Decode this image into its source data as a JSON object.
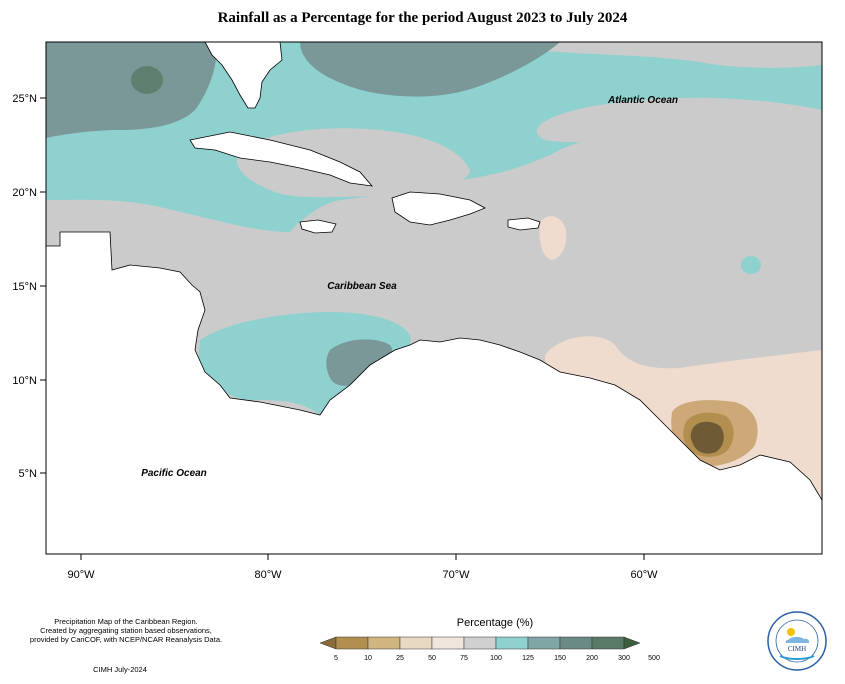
{
  "title": "Rainfall as a Percentage for the period August 2023 to July 2024",
  "map": {
    "labels": {
      "atlantic": "Atlantic Ocean",
      "caribbean": "Caribbean Sea",
      "pacific": "Pacific Ocean"
    },
    "lat_ticks": [
      "25°N",
      "20°N",
      "15°N",
      "10°N",
      "5°N"
    ],
    "lon_ticks": [
      "90°W",
      "80°W",
      "70°W",
      "60°W"
    ],
    "colors": {
      "p150_200": "#7a9898",
      "p125_150": "#8fd1cf",
      "p100_125": "#cbcbcb",
      "p75_100": "#efdccf",
      "p50_75": "#cda97a",
      "p25_50": "#b38f4f",
      "p5_25": "#6e5a34",
      "land": "#ffffff"
    }
  },
  "legend": {
    "title": "Percentage (%)",
    "ticks": [
      "5",
      "10",
      "25",
      "50",
      "75",
      "100",
      "125",
      "150",
      "200",
      "300",
      "500"
    ],
    "colors": [
      "#8a6b3a",
      "#b08f4f",
      "#cfb680",
      "#e8d9c2",
      "#efe5dc",
      "#d0d0d0",
      "#8fd1cf",
      "#7fa6a4",
      "#6a8a85",
      "#587a66",
      "#3b5e3f"
    ]
  },
  "footer": {
    "line1": "Precipitation Map of the Caribbean Region.",
    "line2": "Created by aggregating station based observations,",
    "line3": "provided by CariCOF, with NCEP/NCAR Reanalysis Data.",
    "credit": "CIMH July-2024"
  },
  "logo": {
    "text": "CIMH"
  }
}
